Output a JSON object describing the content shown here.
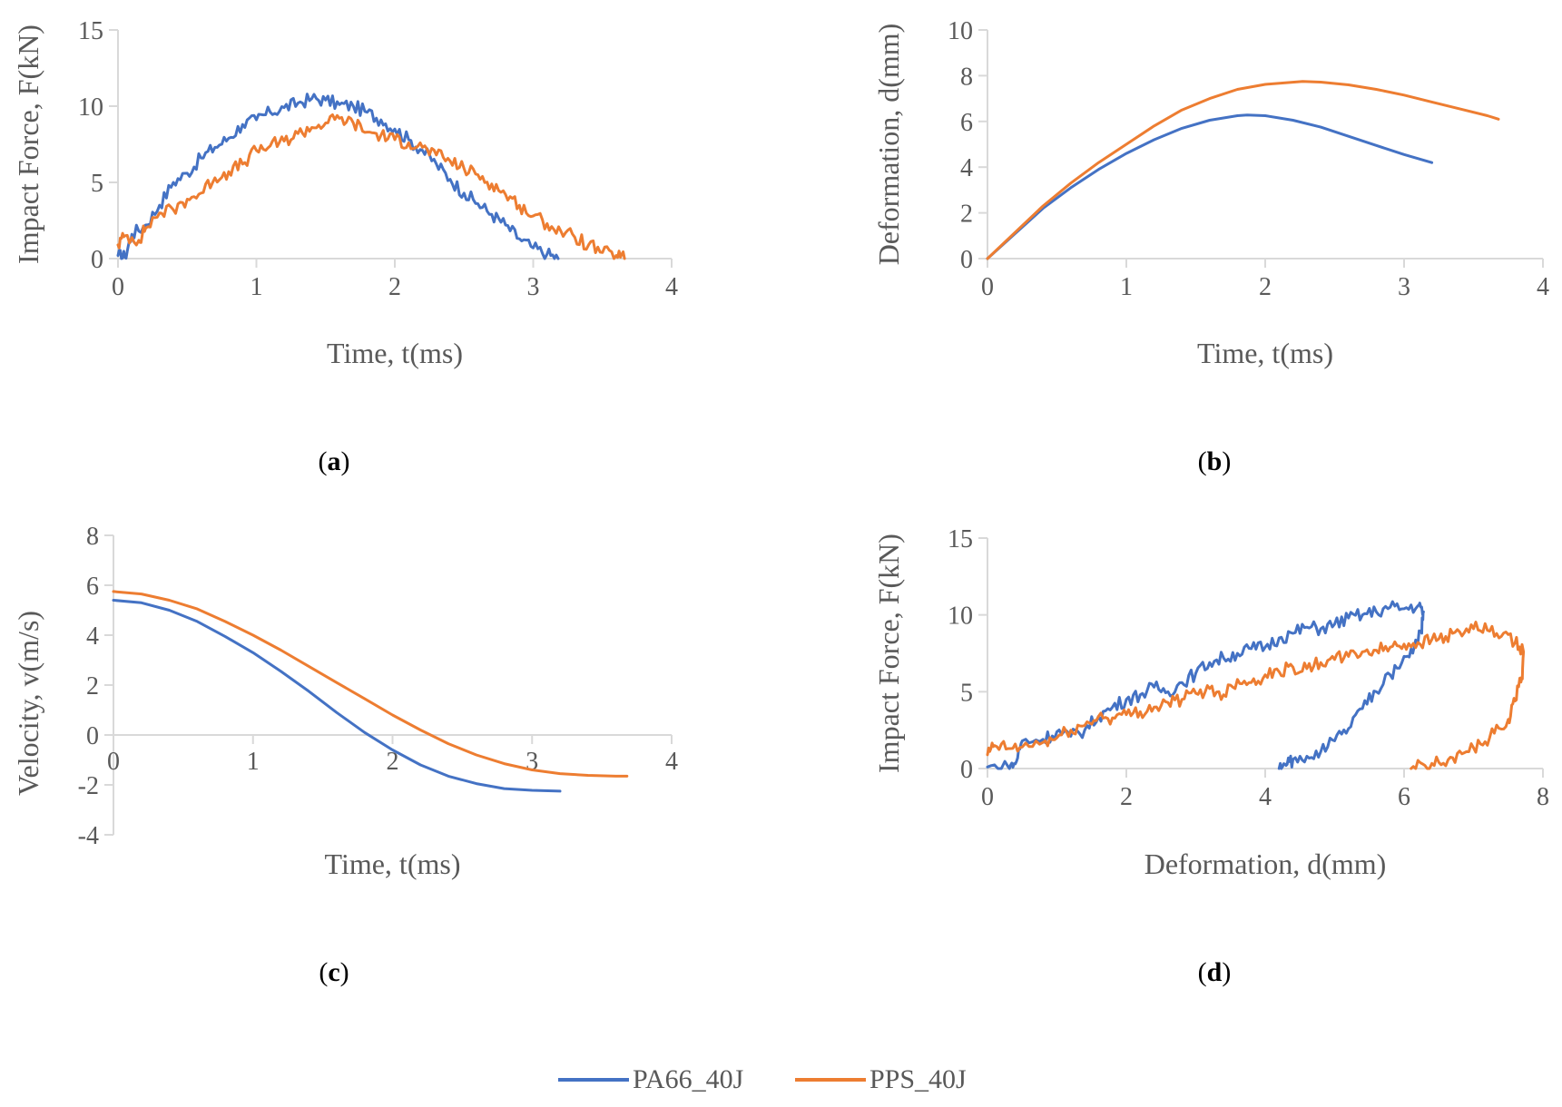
{
  "colors": {
    "PA66_40J": "#4472C4",
    "PPS_40J": "#ED7D31",
    "axis": "#D9D9D9",
    "text": "#595959"
  },
  "legend": [
    {
      "name": "PA66_40J",
      "color": "#4472C4"
    },
    {
      "name": "PPS_40J",
      "color": "#ED7D31"
    }
  ],
  "panel_labels": {
    "a": "a",
    "b": "b",
    "c": "c",
    "d": "d"
  },
  "chart_data": [
    {
      "id": "a",
      "type": "line",
      "title": "",
      "xlabel": "Time, t(ms)",
      "ylabel": "Impact Force, F(kN)",
      "xlim": [
        0,
        4
      ],
      "ylim": [
        0,
        15
      ],
      "xticks": [
        0,
        1,
        2,
        3,
        4
      ],
      "yticks": [
        0,
        5,
        10,
        15
      ],
      "grid": false,
      "series": [
        {
          "name": "PA66_40J",
          "color": "#4472C4",
          "noisy": true,
          "x": [
            0,
            0.05,
            0.1,
            0.2,
            0.3,
            0.4,
            0.5,
            0.6,
            0.7,
            0.8,
            0.9,
            1.0,
            1.1,
            1.2,
            1.3,
            1.4,
            1.5,
            1.6,
            1.7,
            1.8,
            1.9,
            2.0,
            2.1,
            2.2,
            2.3,
            2.4,
            2.5,
            2.6,
            2.7,
            2.8,
            2.9,
            3.0,
            3.1,
            3.18
          ],
          "y": [
            0.2,
            0.1,
            1.6,
            2.2,
            3.5,
            5.0,
            5.6,
            6.6,
            7.3,
            7.9,
            8.8,
            9.1,
            9.6,
            9.9,
            10.2,
            10.5,
            10.4,
            10.1,
            10.0,
            9.6,
            9.1,
            8.5,
            7.8,
            7.1,
            6.2,
            5.2,
            4.3,
            3.6,
            2.9,
            2.2,
            1.3,
            0.7,
            0.3,
            0.0
          ]
        },
        {
          "name": "PPS_40J",
          "color": "#ED7D31",
          "noisy": true,
          "x": [
            0,
            0.05,
            0.15,
            0.2,
            0.3,
            0.4,
            0.5,
            0.6,
            0.7,
            0.8,
            0.9,
            1.0,
            1.1,
            1.2,
            1.3,
            1.4,
            1.5,
            1.6,
            1.7,
            1.8,
            1.9,
            2.0,
            2.1,
            2.2,
            2.3,
            2.4,
            2.5,
            2.6,
            2.7,
            2.8,
            2.9,
            3.0,
            3.1,
            3.2,
            3.3,
            3.4,
            3.5,
            3.6,
            3.66
          ],
          "y": [
            0.9,
            1.5,
            1.2,
            2.0,
            3.0,
            3.2,
            3.9,
            4.3,
            5.3,
            5.7,
            6.2,
            7.1,
            7.4,
            7.7,
            8.2,
            8.6,
            8.9,
            9.2,
            8.9,
            8.3,
            8.1,
            7.8,
            7.6,
            7.3,
            6.8,
            6.4,
            5.9,
            5.5,
            4.9,
            4.2,
            3.5,
            2.8,
            2.3,
            1.8,
            1.4,
            0.9,
            0.4,
            0.2,
            0.0
          ]
        }
      ]
    },
    {
      "id": "b",
      "type": "line",
      "title": "",
      "xlabel": "Time, t(ms)",
      "ylabel": "Deformation, d(mm)",
      "xlim": [
        0,
        4
      ],
      "ylim": [
        0,
        10
      ],
      "xticks": [
        0,
        1,
        2,
        3,
        4
      ],
      "yticks": [
        0,
        2,
        4,
        6,
        8,
        10
      ],
      "grid": false,
      "series": [
        {
          "name": "PA66_40J",
          "color": "#4472C4",
          "noisy": false,
          "x": [
            0,
            0.2,
            0.4,
            0.6,
            0.8,
            1.0,
            1.2,
            1.4,
            1.6,
            1.8,
            1.87,
            2.0,
            2.2,
            2.4,
            2.6,
            2.8,
            3.0,
            3.2
          ],
          "y": [
            0,
            1.1,
            2.2,
            3.1,
            3.9,
            4.6,
            5.2,
            5.7,
            6.05,
            6.25,
            6.28,
            6.25,
            6.05,
            5.75,
            5.35,
            4.95,
            4.55,
            4.2
          ]
        },
        {
          "name": "PPS_40J",
          "color": "#ED7D31",
          "noisy": false,
          "x": [
            0,
            0.2,
            0.4,
            0.6,
            0.8,
            1.0,
            1.2,
            1.4,
            1.6,
            1.8,
            2.0,
            2.27,
            2.4,
            2.6,
            2.8,
            3.0,
            3.2,
            3.4,
            3.6,
            3.68
          ],
          "y": [
            0,
            1.15,
            2.3,
            3.3,
            4.2,
            5.0,
            5.8,
            6.5,
            7.0,
            7.4,
            7.62,
            7.75,
            7.72,
            7.6,
            7.4,
            7.15,
            6.85,
            6.55,
            6.25,
            6.1
          ]
        }
      ]
    },
    {
      "id": "c",
      "type": "line",
      "title": "",
      "xlabel": "Time, t(ms)",
      "ylabel": "Velocity, v(m/s)",
      "xlim": [
        0,
        4
      ],
      "ylim": [
        -4,
        8
      ],
      "xticks": [
        0,
        1,
        2,
        3,
        4
      ],
      "yticks": [
        -4,
        -2,
        0,
        2,
        4,
        6,
        8
      ],
      "grid": false,
      "series": [
        {
          "name": "PA66_40J",
          "color": "#4472C4",
          "noisy": false,
          "x": [
            0,
            0.2,
            0.4,
            0.6,
            0.8,
            1.0,
            1.2,
            1.4,
            1.6,
            1.8,
            2.0,
            2.2,
            2.4,
            2.6,
            2.8,
            3.0,
            3.2
          ],
          "y": [
            5.4,
            5.3,
            5.0,
            4.55,
            3.95,
            3.3,
            2.55,
            1.75,
            0.9,
            0.1,
            -0.6,
            -1.2,
            -1.65,
            -1.95,
            -2.15,
            -2.22,
            -2.25
          ]
        },
        {
          "name": "PPS_40J",
          "color": "#ED7D31",
          "noisy": false,
          "x": [
            0,
            0.2,
            0.4,
            0.6,
            0.8,
            1.0,
            1.2,
            1.4,
            1.6,
            1.8,
            2.0,
            2.2,
            2.4,
            2.6,
            2.8,
            3.0,
            3.2,
            3.4,
            3.6,
            3.68
          ],
          "y": [
            5.75,
            5.65,
            5.4,
            5.05,
            4.55,
            4.0,
            3.4,
            2.75,
            2.1,
            1.45,
            0.8,
            0.2,
            -0.35,
            -0.8,
            -1.15,
            -1.4,
            -1.55,
            -1.62,
            -1.65,
            -1.65
          ]
        }
      ]
    },
    {
      "id": "d",
      "type": "line",
      "title": "",
      "xlabel": "Deformation, d(mm)",
      "ylabel": "Impact Force, F(kN)",
      "xlim": [
        0,
        8
      ],
      "ylim": [
        0,
        15
      ],
      "xticks": [
        0,
        2,
        4,
        6,
        8
      ],
      "yticks": [
        0,
        5,
        10,
        15
      ],
      "grid": false,
      "series": [
        {
          "name": "PA66_40J",
          "color": "#4472C4",
          "noisy": true,
          "x": [
            0,
            0.3,
            0.4,
            0.5,
            0.8,
            1.0,
            1.2,
            1.4,
            1.6,
            1.8,
            2.0,
            2.2,
            2.4,
            2.6,
            2.8,
            3.0,
            3.2,
            3.4,
            3.6,
            3.8,
            4.0,
            4.2,
            4.4,
            4.6,
            4.8,
            5.0,
            5.2,
            5.4,
            5.6,
            5.8,
            6.0,
            6.2,
            6.28,
            6.25,
            6.15,
            6.0,
            5.8,
            5.6,
            5.4,
            5.2,
            5.0,
            4.8,
            4.6,
            4.4,
            4.3,
            4.2
          ],
          "y": [
            0.1,
            0.1,
            0.3,
            1.8,
            1.9,
            2.4,
            2.1,
            2.5,
            3.4,
            4.0,
            4.5,
            4.8,
            5.3,
            5.0,
            5.6,
            6.2,
            6.9,
            7.2,
            7.5,
            7.8,
            7.9,
            8.5,
            8.8,
            9.2,
            9.1,
            9.4,
            9.8,
            10.0,
            10.2,
            10.5,
            10.4,
            10.6,
            10.2,
            9.0,
            8.0,
            7.3,
            6.1,
            5.0,
            3.9,
            2.6,
            1.8,
            1.1,
            0.8,
            0.6,
            0.2,
            0.0
          ]
        },
        {
          "name": "PPS_40J",
          "color": "#ED7D31",
          "noisy": true,
          "x": [
            0,
            0.1,
            0.3,
            0.5,
            0.8,
            1.0,
            1.2,
            1.4,
            1.6,
            1.8,
            2.0,
            2.2,
            2.4,
            2.6,
            2.8,
            3.0,
            3.2,
            3.4,
            3.6,
            3.8,
            4.0,
            4.2,
            4.4,
            4.6,
            4.8,
            5.0,
            5.2,
            5.4,
            5.6,
            5.8,
            6.0,
            6.2,
            6.4,
            6.6,
            6.8,
            7.0,
            7.2,
            7.4,
            7.6,
            7.72,
            7.7,
            7.6,
            7.5,
            7.3,
            7.1,
            6.9,
            6.7,
            6.5,
            6.3,
            6.1
          ],
          "y": [
            0.9,
            1.5,
            1.3,
            1.4,
            1.7,
            2.0,
            2.5,
            2.8,
            3.4,
            3.3,
            3.5,
            3.7,
            4.0,
            4.3,
            4.5,
            4.9,
            5.2,
            4.8,
            5.8,
            5.6,
            6.1,
            6.3,
            6.6,
            6.5,
            6.9,
            7.1,
            7.3,
            7.6,
            7.7,
            7.9,
            8.1,
            8.2,
            8.4,
            8.6,
            8.9,
            9.1,
            9.0,
            8.6,
            8.2,
            7.6,
            6.0,
            4.4,
            3.2,
            2.3,
            1.6,
            1.1,
            0.7,
            0.4,
            0.2,
            0.0
          ]
        }
      ]
    }
  ]
}
